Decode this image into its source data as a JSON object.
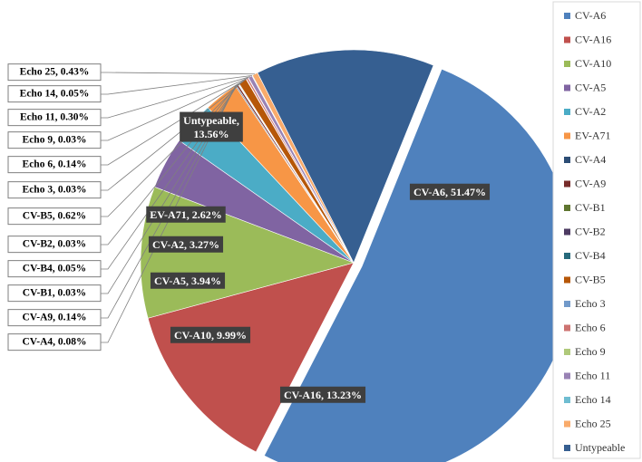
{
  "chart_data": {
    "type": "pie",
    "title": "",
    "legend_position": "right",
    "series": [
      {
        "name": "CV-A6",
        "value": 51.47,
        "label": "CV-A6, 51.47%",
        "color": "#4f81bd"
      },
      {
        "name": "CV-A16",
        "value": 13.23,
        "label": "CV-A16, 13.23%",
        "color": "#c0504d"
      },
      {
        "name": "CV-A10",
        "value": 9.99,
        "label": "CV-A10, 9.99%",
        "color": "#9bbb59"
      },
      {
        "name": "CV-A5",
        "value": 3.94,
        "label": "CV-A5, 3.94%",
        "color": "#8064a2"
      },
      {
        "name": "CV-A2",
        "value": 3.27,
        "label": "CV-A2, 3.27%",
        "color": "#4bacc6"
      },
      {
        "name": "EV-A71",
        "value": 2.62,
        "label": "EV-A71, 2.62%",
        "color": "#f79646"
      },
      {
        "name": "CV-A4",
        "value": 0.08,
        "label": "CV-A4, 0.08%",
        "color": "#2c4d75"
      },
      {
        "name": "CV-A9",
        "value": 0.14,
        "label": "CV-A9, 0.14%",
        "color": "#772c2a"
      },
      {
        "name": "CV-B1",
        "value": 0.03,
        "label": "CV-B1, 0.03%",
        "color": "#5f7530"
      },
      {
        "name": "CV-B2",
        "value": 0.03,
        "label": "CV-B2, 0.03%",
        "color": "#4d3b62"
      },
      {
        "name": "CV-B4",
        "value": 0.05,
        "label": "CV-B4, 0.05%",
        "color": "#276a7c"
      },
      {
        "name": "CV-B5",
        "value": 0.62,
        "label": "CV-B5, 0.62%",
        "color": "#b65708"
      },
      {
        "name": "Echo 3",
        "value": 0.03,
        "label": "Echo 3, 0.03%",
        "color": "#729aca"
      },
      {
        "name": "Echo 6",
        "value": 0.14,
        "label": "Echo 6, 0.14%",
        "color": "#cd7371"
      },
      {
        "name": "Echo 9",
        "value": 0.03,
        "label": "Echo 9, 0.03%",
        "color": "#afc97a"
      },
      {
        "name": "Echo 11",
        "value": 0.3,
        "label": "Echo 11, 0.30%",
        "color": "#9983b5"
      },
      {
        "name": "Echo 14",
        "value": 0.05,
        "label": "Echo 14, 0.05%",
        "color": "#6fbdd1"
      },
      {
        "name": "Echo 25",
        "value": 0.43,
        "label": "Echo 25, 0.43%",
        "color": "#f9ab6b"
      },
      {
        "name": "Untypeable",
        "value": 13.56,
        "label": "Untypeable, 13.56%",
        "color": "#365f91"
      }
    ]
  }
}
